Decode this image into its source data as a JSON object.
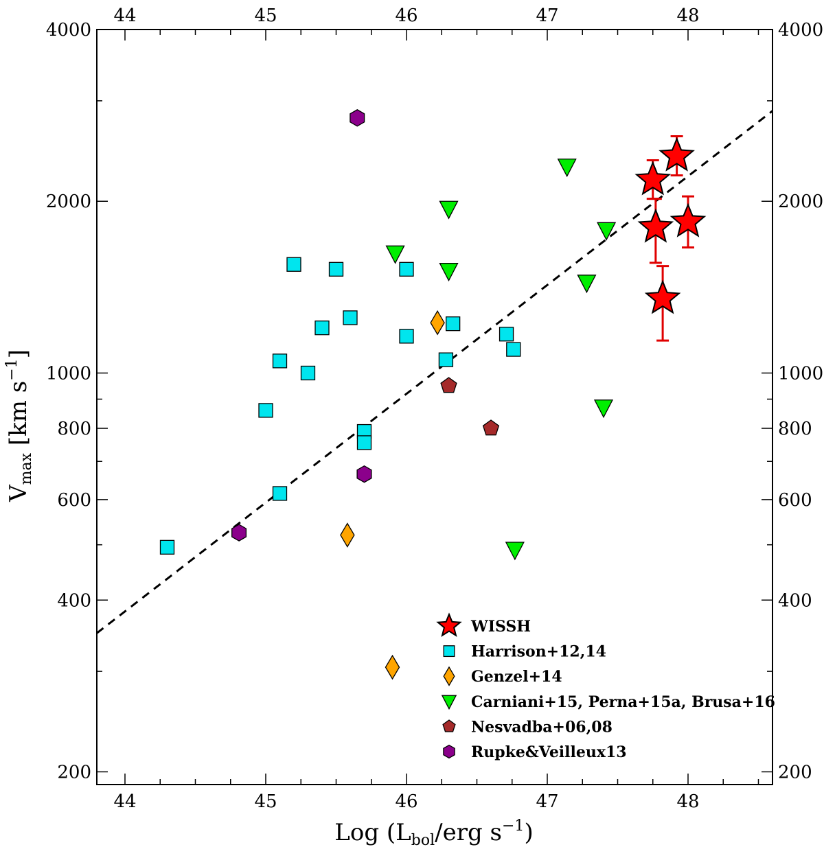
{
  "chart_data": {
    "type": "scatter",
    "title": "",
    "xlabel": {
      "main": "Log (L",
      "sub": "bol",
      "rest": "/erg s",
      "sup": "−1",
      "close": ")"
    },
    "ylabel": {
      "main": "V",
      "sub": "max",
      "rest": " [km s",
      "sup": "−1",
      "close": "]"
    },
    "xlim": [
      43.8,
      48.6
    ],
    "ylim": [
      190,
      4000
    ],
    "yscale": "log",
    "x_ticks": [
      "44",
      "45",
      "46",
      "47",
      "48"
    ],
    "x_tick_values": [
      44,
      45,
      46,
      47,
      48
    ],
    "y_ticks": [
      "200",
      "400",
      "600",
      "800",
      "1000",
      "2000",
      "4000"
    ],
    "y_tick_values": [
      200,
      400,
      600,
      800,
      1000,
      2000,
      4000
    ],
    "y_minor_ticks": [
      300,
      500,
      700,
      900,
      3000
    ],
    "legend_position": "bottom-right",
    "fit_line": {
      "style": "dashed",
      "points": [
        [
          43.8,
          350
        ],
        [
          48.6,
          2880
        ]
      ]
    },
    "series": [
      {
        "name": "WISSH",
        "marker": "star",
        "color": "#ff0000",
        "errorbar_color": "#e00000",
        "points": [
          {
            "x": 47.75,
            "y": 2180,
            "yerr_lo": 2020,
            "yerr_hi": 2360
          },
          {
            "x": 47.92,
            "y": 2400,
            "yerr_lo": 2220,
            "yerr_hi": 2600
          },
          {
            "x": 47.77,
            "y": 1800,
            "yerr_lo": 1560,
            "yerr_hi": 2020
          },
          {
            "x": 48.0,
            "y": 1840,
            "yerr_lo": 1660,
            "yerr_hi": 2040
          },
          {
            "x": 47.82,
            "y": 1350,
            "yerr_lo": 1140,
            "yerr_hi": 1540
          }
        ]
      },
      {
        "name": "Harrison+12,14",
        "marker": "square",
        "color": "#00e5ee",
        "points": [
          {
            "x": 44.3,
            "y": 495
          },
          {
            "x": 45.0,
            "y": 860
          },
          {
            "x": 45.1,
            "y": 1050
          },
          {
            "x": 45.1,
            "y": 615
          },
          {
            "x": 45.2,
            "y": 1550
          },
          {
            "x": 45.3,
            "y": 1000
          },
          {
            "x": 45.4,
            "y": 1200
          },
          {
            "x": 45.5,
            "y": 1520
          },
          {
            "x": 45.6,
            "y": 1250
          },
          {
            "x": 45.7,
            "y": 790
          },
          {
            "x": 45.7,
            "y": 755
          },
          {
            "x": 46.0,
            "y": 1520
          },
          {
            "x": 46.0,
            "y": 1160
          },
          {
            "x": 46.28,
            "y": 1055
          },
          {
            "x": 46.33,
            "y": 1220
          },
          {
            "x": 46.71,
            "y": 1170
          },
          {
            "x": 46.76,
            "y": 1100
          }
        ]
      },
      {
        "name": "Genzel+14",
        "marker": "diamond",
        "color": "#ffa500",
        "points": [
          {
            "x": 46.22,
            "y": 1225
          },
          {
            "x": 45.58,
            "y": 520
          },
          {
            "x": 45.9,
            "y": 305
          }
        ]
      },
      {
        "name": "Carniani+15, Perna+15a, Brusa+16",
        "marker": "triangle-down",
        "color": "#00ee00",
        "points": [
          {
            "x": 45.92,
            "y": 1620
          },
          {
            "x": 46.3,
            "y": 1940
          },
          {
            "x": 46.3,
            "y": 1510
          },
          {
            "x": 47.14,
            "y": 2300
          },
          {
            "x": 47.42,
            "y": 1780
          },
          {
            "x": 47.28,
            "y": 1440
          },
          {
            "x": 47.4,
            "y": 870
          },
          {
            "x": 46.77,
            "y": 490
          }
        ]
      },
      {
        "name": "Nesvadba+06,08",
        "marker": "pentagon",
        "color": "#a52a2a",
        "points": [
          {
            "x": 46.3,
            "y": 950
          },
          {
            "x": 46.6,
            "y": 800
          }
        ]
      },
      {
        "name": "Rupke&Veilleux13",
        "marker": "hexagon",
        "color": "#8b008b",
        "points": [
          {
            "x": 45.65,
            "y": 2800
          },
          {
            "x": 45.7,
            "y": 665
          },
          {
            "x": 44.81,
            "y": 525
          }
        ]
      }
    ]
  }
}
